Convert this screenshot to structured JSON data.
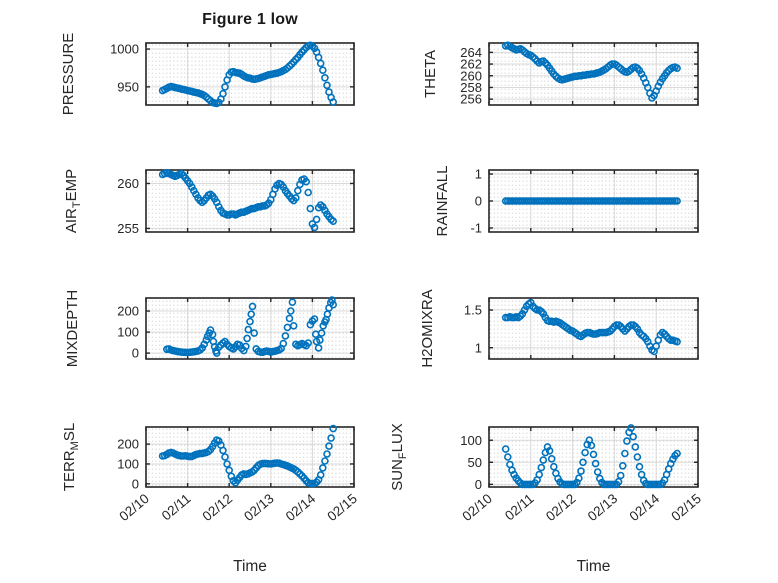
{
  "figure": {
    "title": "Figure 1 low",
    "marker_color": "#0072BD",
    "axis_color": "#262626",
    "major_grid_color": "#d9d9d9",
    "minor_grid_dot_color": "#c3c3c3",
    "background": "#ffffff"
  },
  "chart_data": {
    "type": "scatter",
    "title": "Figure 1 low",
    "marker": "open-circle",
    "grid": "major-solid+minor-dotted",
    "x_axis": {
      "label": "Time",
      "xlim": [
        0,
        5
      ],
      "ticks": [
        0,
        1,
        2,
        3,
        4,
        5
      ],
      "tick_labels": [
        "02/10",
        "02/11",
        "02/12",
        "02/13",
        "02/14",
        "02/15"
      ],
      "tick_label_rotation": -40
    },
    "subplots": [
      {
        "id": "pressure",
        "ylabel": "PRESSURE",
        "ylim": [
          926,
          1008
        ],
        "yticks": [
          950,
          1000
        ],
        "ytick_labels": [
          "950",
          "1000"
        ],
        "t0": 0.4,
        "dt": 0.05,
        "values": [
          945,
          946.5,
          948,
          949.5,
          950.5,
          950,
          949,
          948.5,
          948,
          947,
          946.5,
          946,
          945,
          944.5,
          944,
          943,
          942.5,
          942,
          941,
          940,
          938.5,
          936.5,
          934,
          931.5,
          929.5,
          928.5,
          928,
          929.5,
          934,
          941,
          950,
          959,
          966,
          969.5,
          970,
          969,
          968.5,
          968,
          966.5,
          964.5,
          963,
          962,
          961.5,
          960.5,
          960,
          960.5,
          961,
          962,
          963,
          964,
          965,
          966,
          966.5,
          967,
          967.5,
          968,
          969,
          970,
          971.5,
          973,
          975,
          977.5,
          980,
          983,
          986,
          989,
          992.5,
          996,
          999,
          1002,
          1004,
          1005,
          1004,
          1001,
          996,
          989,
          981,
          972,
          962,
          952,
          943,
          936,
          930
        ]
      },
      {
        "id": "theta",
        "ylabel": "THETA",
        "ylim": [
          255,
          265.6
        ],
        "yticks": [
          256,
          258,
          260,
          262,
          264
        ],
        "ytick_labels": [
          "256",
          "258",
          "260",
          "262",
          "264"
        ],
        "t0": 0.4,
        "dt": 0.05,
        "values": [
          265.1,
          265.2,
          265.0,
          264.8,
          264.6,
          264.4,
          264.5,
          264.6,
          264.4,
          264.1,
          263.8,
          263.6,
          263.5,
          263.2,
          262.9,
          262.5,
          262.2,
          262.4,
          262.5,
          262.2,
          261.8,
          261.3,
          260.8,
          260.3,
          259.9,
          259.6,
          259.4,
          259.3,
          259.4,
          259.5,
          259.6,
          259.7,
          259.8,
          259.9,
          259.9,
          260.0,
          260.0,
          260.1,
          260.1,
          260.2,
          260.2,
          260.3,
          260.3,
          260.4,
          260.5,
          260.6,
          260.8,
          261.0,
          261.2,
          261.5,
          261.8,
          262.0,
          262.0,
          261.8,
          261.5,
          261.2,
          260.9,
          260.7,
          260.6,
          260.8,
          261.1,
          261.4,
          261.5,
          261.3,
          260.9,
          260.3,
          259.6,
          258.8,
          258.0,
          257.0,
          256.2,
          256.6,
          257.4,
          258.2,
          258.9,
          259.5,
          260.0,
          260.5,
          260.9,
          261.2,
          261.4,
          261.5,
          261.3
        ]
      },
      {
        "id": "airtemp",
        "ylabel": "AIR_TEMP",
        "ylim": [
          254.6,
          261.5
        ],
        "yticks": [
          255,
          260
        ],
        "ytick_labels": [
          "255",
          "260"
        ],
        "t0": 0.4,
        "dt": 0.05,
        "values": [
          261.0,
          261.1,
          261.2,
          261.1,
          261.0,
          260.9,
          260.8,
          260.9,
          261.0,
          261.1,
          260.9,
          260.6,
          260.3,
          260.0,
          259.6,
          259.2,
          258.8,
          258.4,
          258.1,
          257.9,
          258.1,
          258.4,
          258.7,
          258.8,
          258.6,
          258.3,
          257.9,
          257.4,
          257.0,
          256.7,
          256.6,
          256.5,
          256.5,
          256.6,
          256.6,
          256.5,
          256.6,
          256.7,
          256.8,
          256.8,
          256.9,
          257.0,
          257.1,
          257.2,
          257.2,
          257.3,
          257.4,
          257.4,
          257.5,
          257.5,
          257.6,
          257.8,
          258.2,
          258.8,
          259.4,
          259.8,
          260.0,
          259.9,
          259.6,
          259.2,
          258.9,
          258.6,
          258.3,
          258.1,
          258.4,
          259.2,
          259.9,
          260.4,
          260.5,
          260.2,
          259.0,
          257.2,
          255.5,
          255.1,
          256.0,
          257.3,
          257.6,
          257.4,
          257.0,
          256.6,
          256.3,
          256.0,
          255.8
        ]
      },
      {
        "id": "rainfall",
        "ylabel": "RAINFALL",
        "ylim": [
          -1.15,
          1.15
        ],
        "yticks": [
          -1,
          0,
          1
        ],
        "ytick_labels": [
          "-1",
          "0",
          "1"
        ],
        "t0": 0.4,
        "dt": 0.05,
        "values": [
          0,
          0,
          0,
          0,
          0,
          0,
          0,
          0,
          0,
          0,
          0,
          0,
          0,
          0,
          0,
          0,
          0,
          0,
          0,
          0,
          0,
          0,
          0,
          0,
          0,
          0,
          0,
          0,
          0,
          0,
          0,
          0,
          0,
          0,
          0,
          0,
          0,
          0,
          0,
          0,
          0,
          0,
          0,
          0,
          0,
          0,
          0,
          0,
          0,
          0,
          0,
          0,
          0,
          0,
          0,
          0,
          0,
          0,
          0,
          0,
          0,
          0,
          0,
          0,
          0,
          0,
          0,
          0,
          0,
          0,
          0,
          0,
          0,
          0,
          0,
          0,
          0,
          0,
          0,
          0,
          0,
          0,
          0
        ]
      },
      {
        "id": "mixdepth",
        "ylabel": "MIXDEPTH",
        "ylim": [
          -28,
          262
        ],
        "yticks": [
          0,
          100,
          200
        ],
        "ytick_labels": [
          "0",
          "100",
          "200"
        ],
        "points": [
          [
            0.5,
            18
          ],
          [
            0.55,
            20
          ],
          [
            0.6,
            15
          ],
          [
            0.65,
            12
          ],
          [
            0.7,
            10
          ],
          [
            0.75,
            8
          ],
          [
            0.8,
            6
          ],
          [
            0.85,
            5
          ],
          [
            0.9,
            4
          ],
          [
            0.95,
            4
          ],
          [
            1.0,
            3
          ],
          [
            1.05,
            4
          ],
          [
            1.1,
            5
          ],
          [
            1.15,
            6
          ],
          [
            1.2,
            8
          ],
          [
            1.25,
            10
          ],
          [
            1.3,
            15
          ],
          [
            1.35,
            25
          ],
          [
            1.4,
            42
          ],
          [
            1.45,
            62
          ],
          [
            1.48,
            80
          ],
          [
            1.52,
            95
          ],
          [
            1.55,
            110
          ],
          [
            1.6,
            88
          ],
          [
            1.62,
            55
          ],
          [
            1.65,
            30
          ],
          [
            1.68,
            10
          ],
          [
            1.7,
            0
          ],
          [
            1.75,
            28
          ],
          [
            1.8,
            38
          ],
          [
            1.85,
            48
          ],
          [
            1.9,
            55
          ],
          [
            1.95,
            42
          ],
          [
            2.0,
            32
          ],
          [
            2.05,
            25
          ],
          [
            2.1,
            20
          ],
          [
            2.15,
            30
          ],
          [
            2.2,
            42
          ],
          [
            2.25,
            38
          ],
          [
            2.3,
            22
          ],
          [
            2.35,
            12
          ],
          [
            2.4,
            32
          ],
          [
            2.43,
            70
          ],
          [
            2.46,
            112
          ],
          [
            2.5,
            150
          ],
          [
            2.53,
            185
          ],
          [
            2.56,
            222
          ],
          [
            2.6,
            95
          ],
          [
            2.65,
            20
          ],
          [
            2.7,
            8
          ],
          [
            2.75,
            5
          ],
          [
            2.8,
            4
          ],
          [
            2.85,
            7
          ],
          [
            2.9,
            10
          ],
          [
            2.95,
            8
          ],
          [
            3.0,
            5
          ],
          [
            3.05,
            7
          ],
          [
            3.1,
            9
          ],
          [
            3.15,
            12
          ],
          [
            3.2,
            15
          ],
          [
            3.25,
            22
          ],
          [
            3.3,
            45
          ],
          [
            3.35,
            82
          ],
          [
            3.4,
            122
          ],
          [
            3.45,
            165
          ],
          [
            3.48,
            200
          ],
          [
            3.52,
            242
          ],
          [
            3.55,
            130
          ],
          [
            3.6,
            42
          ],
          [
            3.65,
            35
          ],
          [
            3.7,
            40
          ],
          [
            3.75,
            45
          ],
          [
            3.8,
            40
          ],
          [
            3.85,
            35
          ],
          [
            3.9,
            48
          ],
          [
            3.95,
            135
          ],
          [
            4.0,
            152
          ],
          [
            4.05,
            162
          ],
          [
            4.08,
            90
          ],
          [
            4.1,
            55
          ],
          [
            4.15,
            25
          ],
          [
            4.18,
            62
          ],
          [
            4.22,
            95
          ],
          [
            4.26,
            130
          ],
          [
            4.3,
            148
          ],
          [
            4.33,
            160
          ],
          [
            4.36,
            185
          ],
          [
            4.4,
            215
          ],
          [
            4.44,
            240
          ],
          [
            4.47,
            252
          ],
          [
            4.5,
            230
          ]
        ]
      },
      {
        "id": "h2omixra",
        "ylabel": "H2OMIXRA",
        "ylim": [
          0.85,
          1.66
        ],
        "yticks": [
          1,
          1.5
        ],
        "ytick_labels": [
          "1",
          "1.5"
        ],
        "t0": 0.4,
        "dt": 0.05,
        "values": [
          1.4,
          1.4,
          1.41,
          1.4,
          1.4,
          1.41,
          1.4,
          1.42,
          1.45,
          1.5,
          1.55,
          1.58,
          1.6,
          1.55,
          1.52,
          1.5,
          1.5,
          1.48,
          1.45,
          1.4,
          1.36,
          1.35,
          1.35,
          1.34,
          1.35,
          1.34,
          1.33,
          1.31,
          1.29,
          1.27,
          1.25,
          1.23,
          1.22,
          1.2,
          1.18,
          1.16,
          1.15,
          1.17,
          1.19,
          1.2,
          1.2,
          1.19,
          1.18,
          1.18,
          1.19,
          1.2,
          1.2,
          1.2,
          1.2,
          1.21,
          1.22,
          1.25,
          1.28,
          1.3,
          1.3,
          1.28,
          1.25,
          1.22,
          1.25,
          1.28,
          1.3,
          1.3,
          1.28,
          1.25,
          1.2,
          1.17,
          1.15,
          1.12,
          1.08,
          1.02,
          0.97,
          0.95,
          1.02,
          1.1,
          1.17,
          1.2,
          1.18,
          1.15,
          1.12,
          1.1,
          1.1,
          1.09,
          1.08
        ]
      },
      {
        "id": "terrmsl",
        "ylabel": "TERR_MSL",
        "ylim": [
          -16,
          286
        ],
        "yticks": [
          0,
          100,
          200
        ],
        "ytick_labels": [
          "0",
          "100",
          "200"
        ],
        "t0": 0.4,
        "dt": 0.05,
        "values": [
          140,
          142,
          148,
          155,
          158,
          155,
          150,
          145,
          142,
          140,
          140,
          141,
          139,
          137,
          138,
          142,
          147,
          150,
          152,
          153,
          155,
          158,
          163,
          172,
          188,
          205,
          220,
          215,
          195,
          168,
          135,
          100,
          68,
          38,
          15,
          5,
          18,
          32,
          45,
          50,
          47,
          50,
          55,
          60,
          68,
          80,
          92,
          99,
          102,
          103,
          102,
          101,
          100,
          102,
          104,
          105,
          104,
          100,
          97,
          93,
          90,
          85,
          80,
          75,
          68,
          60,
          50,
          40,
          28,
          15,
          5,
          2,
          1,
          2,
          8,
          20,
          45,
          80,
          115,
          150,
          190,
          230,
          278
        ]
      },
      {
        "id": "sunflux",
        "ylabel": "SUN_FLUX",
        "ylim": [
          -6,
          130
        ],
        "yticks": [
          0,
          50,
          100
        ],
        "ytick_labels": [
          "0",
          "50",
          "100"
        ],
        "t0": 0.4,
        "dt": 0.05,
        "values": [
          80,
          62,
          45,
          32,
          22,
          14,
          8,
          3,
          0,
          0,
          0,
          0,
          0,
          0,
          3,
          10,
          22,
          38,
          55,
          72,
          85,
          76,
          58,
          40,
          25,
          13,
          5,
          1,
          0,
          0,
          0,
          0,
          0,
          0,
          4,
          14,
          30,
          50,
          72,
          90,
          100,
          88,
          68,
          47,
          28,
          13,
          4,
          0,
          0,
          0,
          0,
          0,
          0,
          0,
          6,
          20,
          42,
          70,
          98,
          118,
          128,
          108,
          85,
          62,
          40,
          22,
          9,
          2,
          0,
          0,
          0,
          0,
          0,
          0,
          0,
          3,
          10,
          22,
          35,
          47,
          57,
          65,
          70
        ]
      }
    ]
  }
}
